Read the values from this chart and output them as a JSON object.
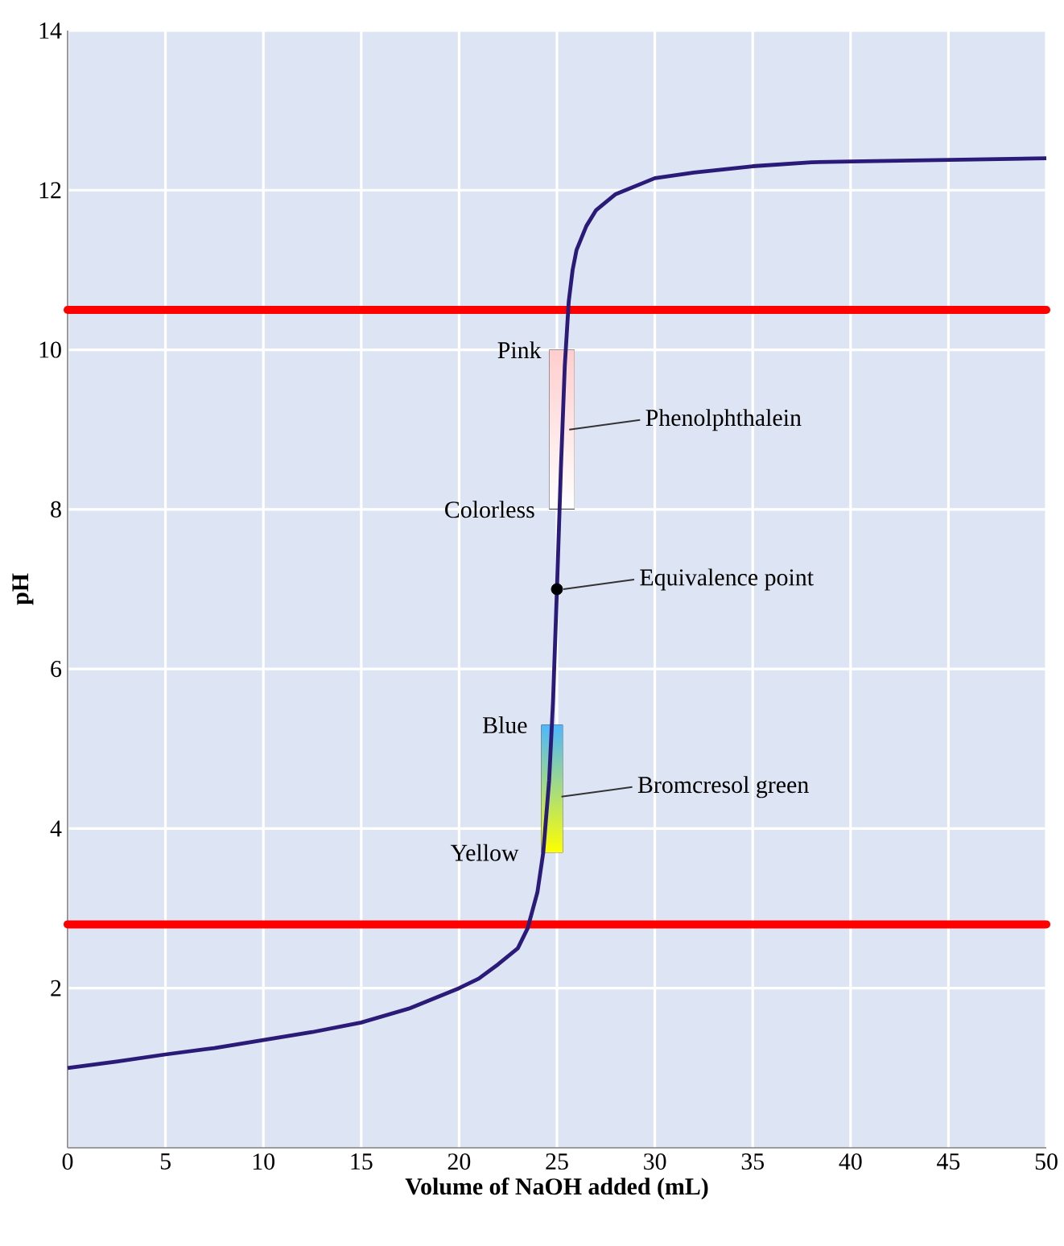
{
  "chart_data": {
    "type": "line",
    "xlabel": "Volume of NaOH added (mL)",
    "ylabel": "pH",
    "xlim": [
      0,
      50
    ],
    "ylim": [
      0,
      14
    ],
    "xticks": [
      0,
      5,
      10,
      15,
      20,
      25,
      30,
      35,
      40,
      45,
      50
    ],
    "yticks": [
      2,
      4,
      6,
      8,
      10,
      12,
      14
    ],
    "grid": true,
    "series": [
      {
        "color": "#2b1b78",
        "marker": "none",
        "x": [
          0,
          2.5,
          5,
          7.5,
          10,
          12.5,
          15,
          17.5,
          20,
          21,
          22,
          23,
          23.5,
          24,
          24.3,
          24.6,
          24.8,
          25,
          25.2,
          25.4,
          25.6,
          25.8,
          26,
          26.5,
          27,
          28,
          29,
          30,
          32,
          35,
          38,
          40,
          45,
          50
        ],
        "values": [
          1.0,
          1.08,
          1.17,
          1.25,
          1.35,
          1.45,
          1.57,
          1.75,
          2.0,
          2.12,
          2.3,
          2.5,
          2.75,
          3.2,
          3.7,
          4.6,
          5.6,
          7.0,
          8.5,
          9.8,
          10.6,
          11.0,
          11.25,
          11.55,
          11.75,
          11.95,
          12.05,
          12.15,
          12.22,
          12.3,
          12.35,
          12.36,
          12.38,
          12.4
        ]
      },
      {
        "type": "scatter",
        "color": "#000000",
        "marker": "circle",
        "x": [
          25
        ],
        "values": [
          7.0
        ]
      }
    ],
    "ref_lines": [
      {
        "axis": "y",
        "value": 10.5,
        "color": "#ff0000"
      },
      {
        "axis": "y",
        "value": 2.8,
        "color": "#ff0000"
      }
    ],
    "annotations": [
      {
        "text": "Pink",
        "x": 25.45,
        "y": 10
      },
      {
        "text": "Colorless",
        "x": 25.13,
        "y": 8
      },
      {
        "text": "Blue",
        "x": 24.75,
        "y": 5.3
      },
      {
        "text": "Yellow",
        "x": 24.3,
        "y": 3.7
      },
      {
        "text": "Phenolphthalein",
        "x": 25.3,
        "y": 9
      },
      {
        "text": "Equivalence point",
        "x": 25,
        "y": 7.0
      },
      {
        "text": "Bromcresol green",
        "x": 24.9,
        "y": 4.4
      }
    ]
  }
}
